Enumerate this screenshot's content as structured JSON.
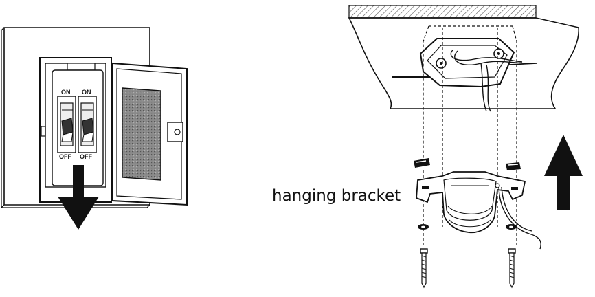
{
  "breaker": {
    "switch_on_label": "ON",
    "switch_off_label": "OFF"
  },
  "bracket": {
    "label": "hanging bracket"
  },
  "colors": {
    "ink": "#111111",
    "panel_fill": "#ffffff",
    "hatch": "#555555",
    "door_window": "#777777"
  },
  "icons": [
    "down-arrow-icon",
    "up-arrow-icon",
    "screw-icon",
    "washer-icon"
  ]
}
